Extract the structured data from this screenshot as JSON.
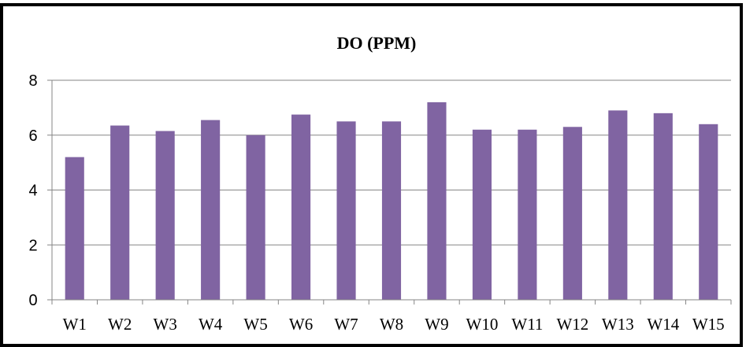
{
  "chart_data": {
    "type": "bar",
    "title": "DO (PPM)",
    "xlabel": "",
    "ylabel": "",
    "categories": [
      "W1",
      "W2",
      "W3",
      "W4",
      "W5",
      "W6",
      "W7",
      "W8",
      "W9",
      "W10",
      "W11",
      "W12",
      "W13",
      "W14",
      "W15"
    ],
    "values": [
      5.2,
      6.35,
      6.15,
      6.55,
      6.0,
      6.75,
      6.5,
      6.5,
      7.2,
      6.2,
      6.2,
      6.3,
      6.9,
      6.8,
      6.4
    ],
    "ylim": [
      0,
      8
    ],
    "yticks": [
      0,
      2,
      4,
      6,
      8
    ],
    "grid": true,
    "legend": "none",
    "bar_color": "#8064A2",
    "frame_color": "#000000",
    "grid_color": "#868686"
  }
}
